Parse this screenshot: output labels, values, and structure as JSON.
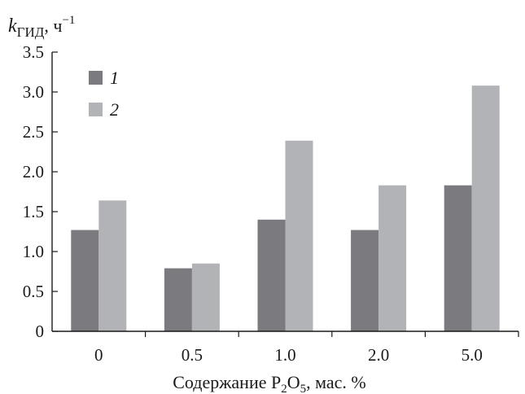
{
  "chart_data": {
    "type": "bar",
    "ylabel": {
      "symbol": "k",
      "subscript": "ГИД",
      "unit": ", ч",
      "superscript": "−1"
    },
    "xlabel": {
      "prefix": "Содержание P",
      "sub1": "2",
      "middle": "O",
      "sub2": "5",
      "suffix": ",  мас. %"
    },
    "categories": [
      "0",
      "0.5",
      "1.0",
      "2.0",
      "5.0"
    ],
    "series": [
      {
        "name": "1",
        "color": "#7b7b7f",
        "values": [
          1.27,
          0.79,
          1.4,
          1.27,
          1.83
        ]
      },
      {
        "name": "2",
        "color": "#b2b3b6",
        "values": [
          1.64,
          0.85,
          2.39,
          1.83,
          3.08
        ]
      }
    ],
    "ylim": [
      0,
      3.5
    ],
    "yticks": [
      "0",
      "0.5",
      "1.0",
      "1.5",
      "2.0",
      "2.5",
      "3.0",
      "3.5"
    ],
    "legend_position": "top-left",
    "grid": false
  }
}
